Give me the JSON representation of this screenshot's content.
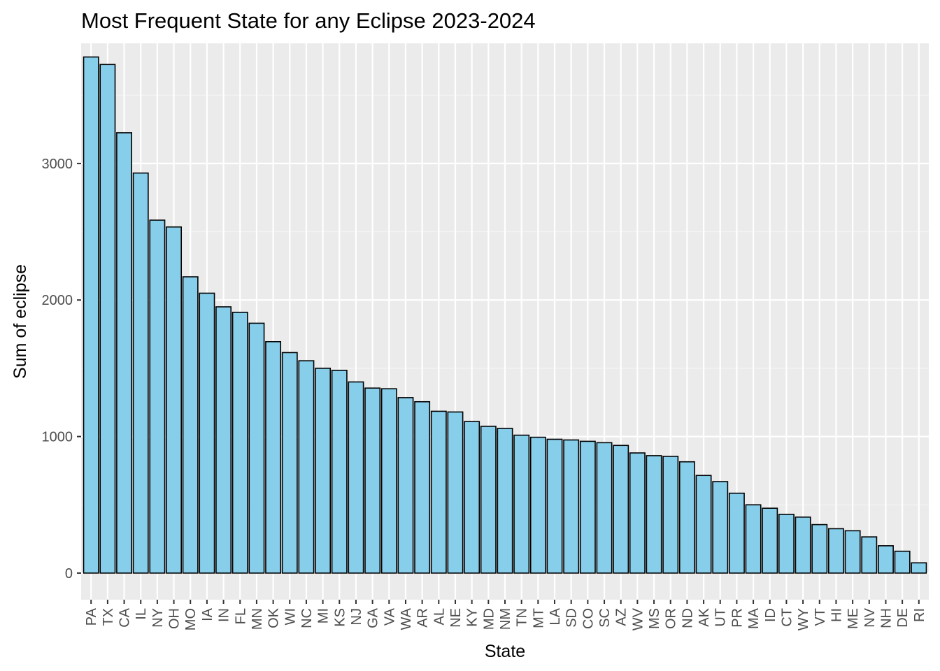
{
  "chart_data": {
    "type": "bar",
    "title": "Most Frequent State for any Eclipse 2023-2024",
    "xlabel": "State",
    "ylabel": "Sum of eclipse",
    "ylim": [
      -195,
      3880
    ],
    "yticks": [
      0,
      1000,
      2000,
      3000
    ],
    "grid": true,
    "colors": {
      "panel": "#ebebeb",
      "grid_major": "#ffffff",
      "grid_minor": "#f5f5f5",
      "bar_fill": "#87ceeb",
      "bar_stroke": "#000000",
      "tick_text": "#4d4d4d"
    },
    "categories": [
      "PA",
      "TX",
      "CA",
      "IL",
      "NY",
      "OH",
      "MO",
      "IA",
      "IN",
      "FL",
      "MN",
      "OK",
      "WI",
      "NC",
      "MI",
      "KS",
      "NJ",
      "GA",
      "VA",
      "WA",
      "AR",
      "AL",
      "NE",
      "KY",
      "MD",
      "NM",
      "TN",
      "MT",
      "LA",
      "SD",
      "CO",
      "SC",
      "AZ",
      "WV",
      "MS",
      "OR",
      "ND",
      "AK",
      "UT",
      "PR",
      "MA",
      "ID",
      "CT",
      "WY",
      "VT",
      "HI",
      "ME",
      "NV",
      "NH",
      "DE",
      "RI"
    ],
    "values": [
      3780,
      3725,
      3225,
      2930,
      2585,
      2535,
      2170,
      2050,
      1950,
      1910,
      1830,
      1695,
      1615,
      1555,
      1500,
      1485,
      1400,
      1355,
      1350,
      1285,
      1255,
      1185,
      1180,
      1110,
      1075,
      1060,
      1010,
      995,
      980,
      975,
      965,
      955,
      935,
      880,
      860,
      855,
      815,
      715,
      670,
      585,
      500,
      475,
      430,
      410,
      355,
      325,
      310,
      265,
      200,
      160,
      75
    ]
  }
}
